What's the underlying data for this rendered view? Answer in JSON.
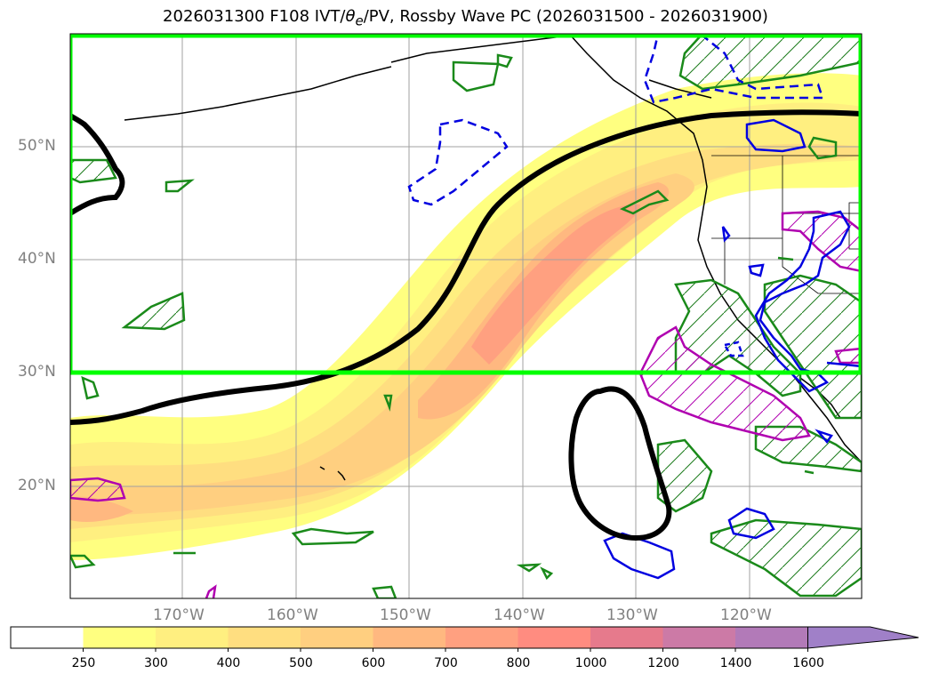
{
  "title": {
    "run": "2026031300",
    "forecast": "F108",
    "fields_prefix": "IVT/",
    "theta_symbol": "θ",
    "theta_sub": "e",
    "fields_suffix": "/PV, Rossby Wave PC (2026031500 - 2026031900)"
  },
  "axes": {
    "lat_labels": [
      "50°N",
      "40°N",
      "30°N",
      "20°N"
    ],
    "lon_labels": [
      "170°W",
      "160°W",
      "150°W",
      "140°W",
      "130°W",
      "120°W"
    ]
  },
  "colorbar": {
    "levels": [
      "250",
      "300",
      "400",
      "500",
      "600",
      "700",
      "800",
      "1000",
      "1200",
      "1400",
      "1600"
    ],
    "colors": [
      "#ffffff",
      "#ffff80",
      "#ffef80",
      "#ffde80",
      "#ffcf80",
      "#ffb880",
      "#ffa080",
      "#ff8c80",
      "#e67a8c",
      "#cc7aa6",
      "#b27ab8",
      "#a080c8"
    ]
  },
  "highlight_box": {
    "color": "#00ff00"
  }
}
